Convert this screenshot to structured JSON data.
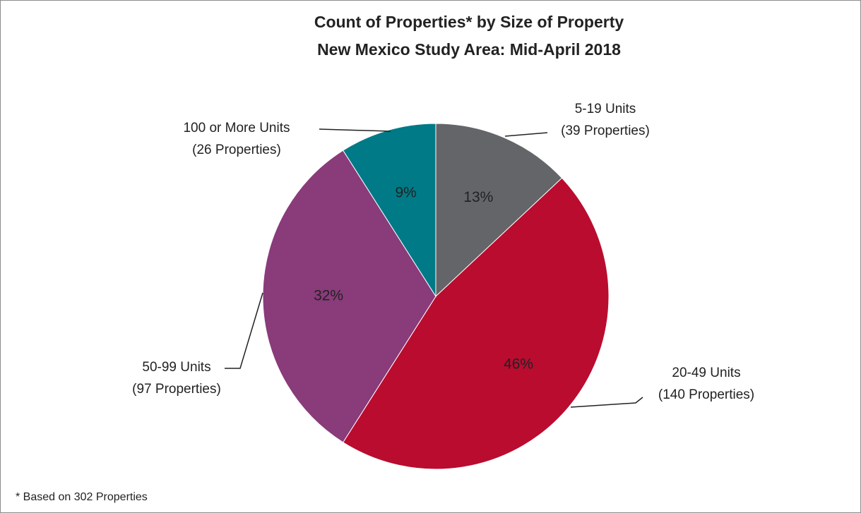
{
  "chart_data": {
    "type": "pie",
    "title": "Count of Properties* by Size of Property",
    "subtitle": "New Mexico Study Area: Mid-April 2018",
    "categories": [
      "5-19 Units",
      "20-49 Units",
      "50-99 Units",
      "100 or More Units"
    ],
    "category_notes": [
      "(39 Properties)",
      "(140 Properties)",
      "(97 Properties)",
      "(26 Properties)"
    ],
    "values": [
      13,
      46,
      32,
      9
    ],
    "value_labels": [
      "13%",
      "46%",
      "32%",
      "9%"
    ],
    "colors": [
      "#636569",
      "#ba0c2f",
      "#893b7a",
      "#007a86"
    ],
    "footnote": "* Based on 302 Properties"
  }
}
